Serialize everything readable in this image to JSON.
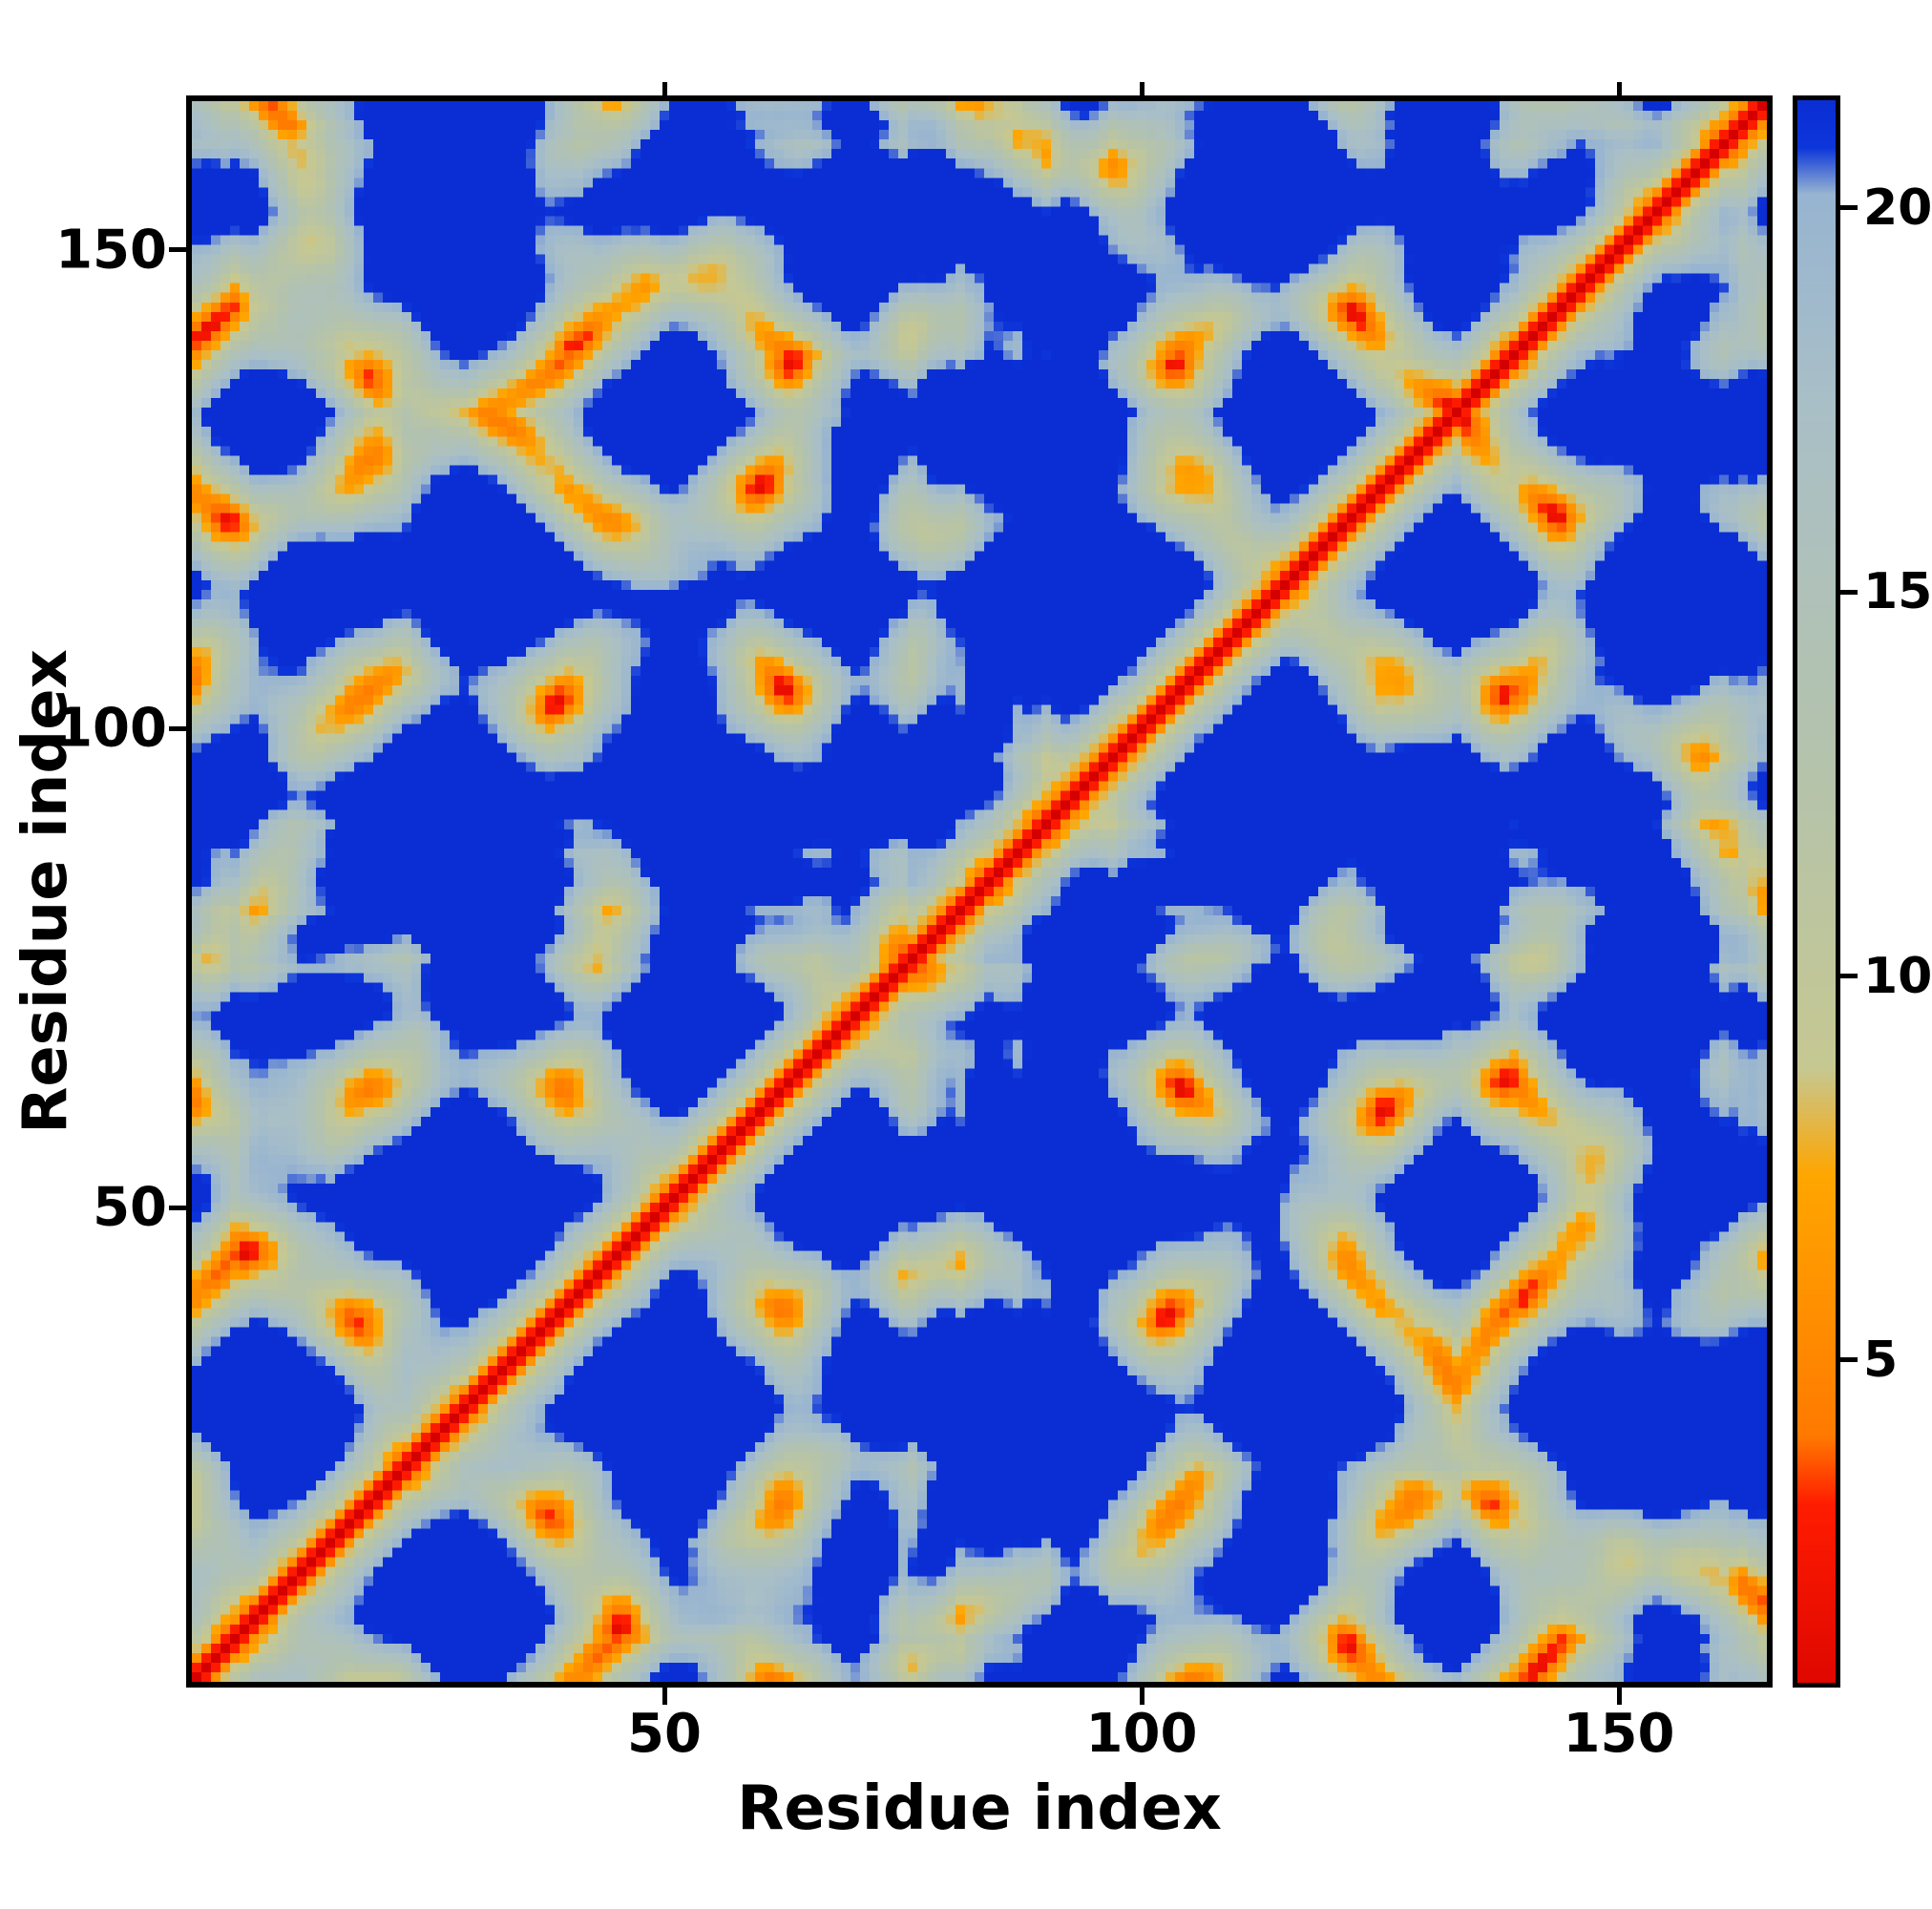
{
  "figure": {
    "background_color": "#ffffff",
    "frame_color": "#000000"
  },
  "chart_data": {
    "type": "heatmap",
    "title": "",
    "xlabel": "Residue index",
    "ylabel": "Residue index",
    "n_residues": 165,
    "axis_range": [
      1,
      165
    ],
    "x_ticks": [
      50,
      100,
      150
    ],
    "y_ticks": [
      50,
      100,
      150
    ],
    "grid": false,
    "legend": false,
    "colorbar": {
      "position": "right",
      "ticks": [
        5,
        10,
        15,
        20
      ],
      "range": [
        0.8,
        21.4
      ]
    },
    "value_description": "Symmetric pairwise residue-residue distance matrix (contact map). Zero-distance red diagonal from bottom-left to top-right, orange short-range contact bands flanking it, gray-green/gray-blue mid-range halos, saturated blue for distances at or beyond the colorbar maximum.",
    "colormap": [
      [
        0.0,
        "#d40000"
      ],
      [
        3.1,
        "#ff1c00"
      ],
      [
        4.0,
        "#ff7a00"
      ],
      [
        7.4,
        "#ffa600"
      ],
      [
        8.8,
        "#c6c892"
      ],
      [
        12.5,
        "#b5c3aa"
      ],
      [
        17.5,
        "#a9bfc7"
      ],
      [
        20.2,
        "#97b4d1"
      ],
      [
        20.8,
        "#0d36da"
      ],
      [
        21.4,
        "#0a2ed4"
      ]
    ],
    "generator": {
      "seed": 1337,
      "step": 3.8,
      "turn_prob": 0.13,
      "turn_strength": 1.7,
      "wobble": 0.38,
      "pull": 0.013,
      "radius_of_gyration": 15.8
    }
  }
}
